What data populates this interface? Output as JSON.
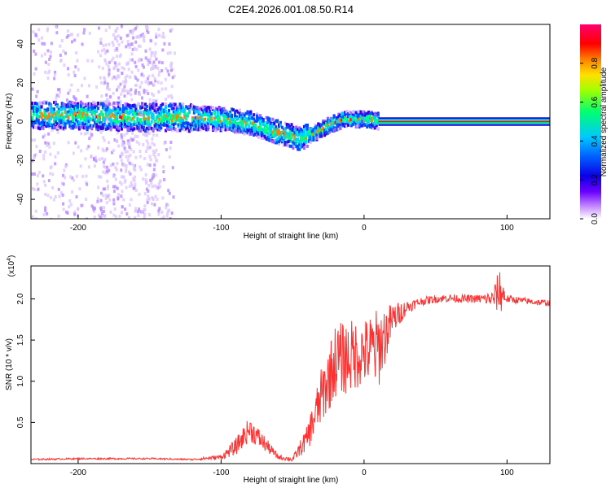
{
  "figure": {
    "title": "C2E4.2026.001.08.50.R14"
  },
  "chart_data": [
    {
      "type": "heatmap",
      "title": "C2E4.2026.001.08.50.R14",
      "xlabel": "Height of straight line (km)",
      "ylabel": "Frequency (Hz)",
      "xlim": [
        -233,
        130
      ],
      "ylim": [
        -50,
        50
      ],
      "xticks": [
        -200,
        -100,
        0,
        100
      ],
      "yticks": [
        -40,
        -20,
        0,
        20,
        40
      ],
      "colorbar": {
        "label": "Normalized spectral amplitude",
        "range": [
          0,
          1
        ],
        "ticks": [
          "0.0",
          "0.2",
          "0.4",
          "0.6",
          "0.8"
        ],
        "tick_values": [
          0,
          0.2,
          0.4,
          0.6,
          0.8
        ],
        "colors": [
          "#ffffff",
          "#b060ff",
          "#2a00e0",
          "#0040ff",
          "#00c8ff",
          "#00ff60",
          "#c8ff00",
          "#ffc800",
          "#ff0000",
          "#ff0060"
        ]
      },
      "ridge_center": {
        "x": [
          -233,
          -200,
          -160,
          -130,
          -100,
          -80,
          -60,
          -45,
          -35,
          -25,
          -15,
          0,
          10,
          130
        ],
        "y": [
          4,
          4,
          3,
          3,
          2,
          0,
          -5,
          -8,
          -5,
          -1,
          2,
          2,
          1,
          0
        ]
      },
      "line_segment": {
        "x_start": 10,
        "x_end": 130,
        "frequency": 0
      }
    },
    {
      "type": "line",
      "title": "",
      "xlabel": "Height of straight line (km)",
      "ylabel": "SNR (10 * v/v)",
      "multiplier_label": "(x10",
      "multiplier_exponent": "4",
      "multiplier_close": ")",
      "xlim": [
        -233,
        130
      ],
      "ylim": [
        0,
        2.4
      ],
      "xticks": [
        -200,
        -100,
        0,
        100
      ],
      "yticks": [
        "0.5",
        "1.0",
        "1.5",
        "2.0"
      ],
      "ytick_values": [
        0.5,
        1.0,
        1.5,
        2.0
      ],
      "color": "#ff3030",
      "series": [
        {
          "name": "SNR",
          "x": [
            -233,
            -200,
            -150,
            -120,
            -100,
            -90,
            -80,
            -70,
            -60,
            -50,
            -40,
            -30,
            -20,
            -10,
            0,
            10,
            20,
            30,
            40,
            50,
            60,
            70,
            80,
            90,
            95,
            100,
            110,
            120,
            130
          ],
          "y": [
            0.05,
            0.06,
            0.06,
            0.05,
            0.08,
            0.2,
            0.42,
            0.25,
            0.08,
            0.05,
            0.3,
            0.8,
            1.25,
            1.3,
            1.35,
            1.4,
            1.75,
            1.9,
            1.97,
            2.0,
            2.01,
            2.0,
            2.0,
            2.0,
            2.1,
            2.0,
            1.98,
            1.96,
            1.95
          ],
          "noise": [
            0.01,
            0.01,
            0.01,
            0.01,
            0.03,
            0.1,
            0.15,
            0.1,
            0.03,
            0.03,
            0.15,
            0.35,
            0.45,
            0.45,
            0.4,
            0.5,
            0.2,
            0.08,
            0.05,
            0.05,
            0.05,
            0.05,
            0.05,
            0.1,
            0.3,
            0.05,
            0.04,
            0.04,
            0.04
          ]
        }
      ]
    }
  ]
}
